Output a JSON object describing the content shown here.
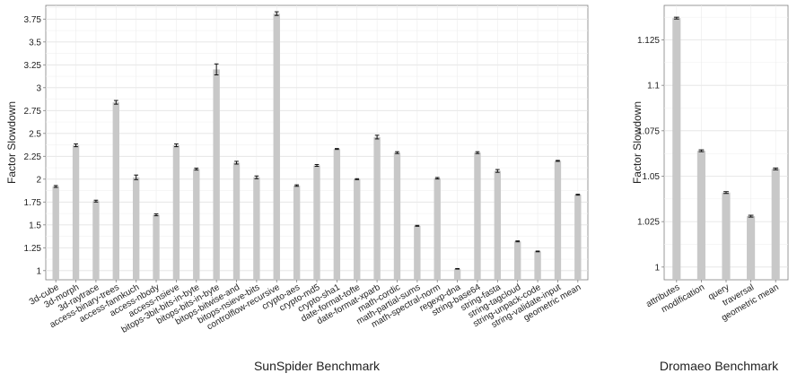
{
  "chart_data": [
    {
      "type": "bar",
      "title": "",
      "xlabel": "SunSpider Benchmark",
      "ylabel": "Factor Slowdown",
      "ylim": [
        0.9,
        3.9
      ],
      "yticks": [
        "1",
        "1.25",
        "1.5",
        "1.75",
        "2",
        "2.25",
        "2.5",
        "2.75",
        "3",
        "3.25",
        "3.5",
        "3.75"
      ],
      "grid": true,
      "bar_color": "#c8c8c8",
      "categories": [
        "3d-cube",
        "3d-morph",
        "3d-raytrace",
        "access-binary-trees",
        "access-fannkuch",
        "access-nbody",
        "access-nsieve",
        "bitops-3bit-bits-in-byte",
        "bitops-bits-in-byte",
        "bitops-bitwise-and",
        "bitops-nsieve-bits",
        "controlflow-recursive",
        "crypto-aes",
        "crypto-md5",
        "crypto-sha1",
        "date-format-tofte",
        "date-format-xparb",
        "math-cordic",
        "math-partial-sums",
        "math-spectral-norm",
        "regexp-dna",
        "string-base64",
        "string-fasta",
        "string-tagcloud",
        "string-unpack-code",
        "string-validate-input",
        "geometric mean"
      ],
      "values": [
        1.92,
        2.37,
        1.76,
        2.84,
        2.02,
        1.61,
        2.37,
        2.11,
        3.2,
        2.18,
        2.02,
        3.81,
        1.93,
        2.15,
        2.33,
        2.0,
        2.46,
        2.29,
        1.49,
        2.01,
        1.02,
        2.29,
        2.09,
        1.32,
        1.21,
        2.2,
        1.83
      ],
      "errors": [
        0.01,
        0.015,
        0.01,
        0.02,
        0.025,
        0.01,
        0.015,
        0.01,
        0.06,
        0.015,
        0.015,
        0.02,
        0.008,
        0.01,
        0.005,
        0.005,
        0.02,
        0.01,
        0.005,
        0.008,
        0.003,
        0.01,
        0.015,
        0.005,
        0.004,
        0.005,
        0.005
      ]
    },
    {
      "type": "bar",
      "title": "",
      "xlabel": "Dromaeo Benchmark",
      "ylabel": "Factor Slowdown",
      "ylim": [
        0.993,
        1.144
      ],
      "yticks": [
        "1",
        "1.025",
        "1.05",
        "1.075",
        "1.1",
        "1.125"
      ],
      "grid": true,
      "bar_color": "#c8c8c8",
      "categories": [
        "attributes",
        "modification",
        "query",
        "traversal",
        "geometric mean"
      ],
      "values": [
        1.137,
        1.064,
        1.041,
        1.028,
        1.054
      ],
      "errors": [
        0.0005,
        0.0005,
        0.0005,
        0.0005,
        0.0005
      ]
    }
  ]
}
